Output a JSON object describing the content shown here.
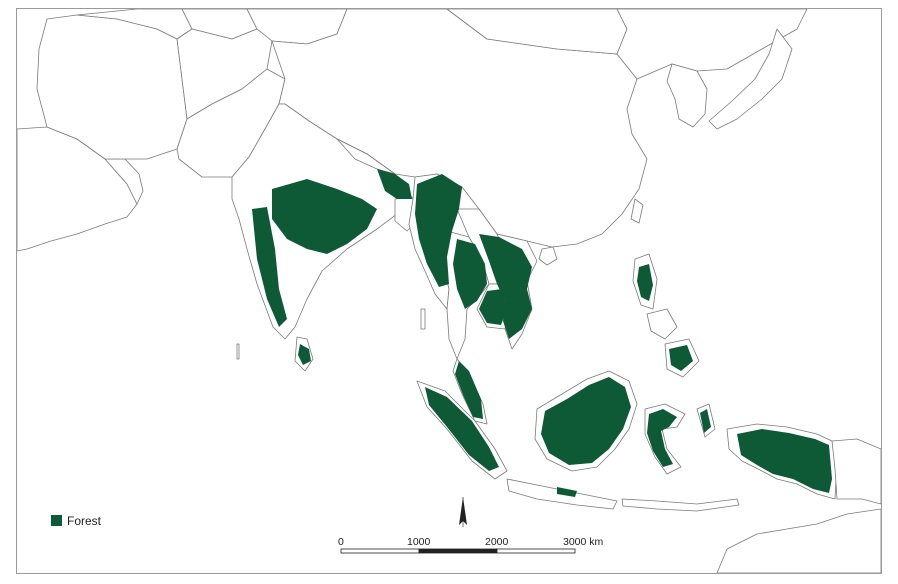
{
  "legend": {
    "forest_label": "Forest"
  },
  "scale_bar": {
    "ticks": [
      "0",
      "1000",
      "2000",
      "3000 km"
    ]
  },
  "colors": {
    "forest": "#0e5a36",
    "border": "#7a7a7a",
    "background": "#ffffff"
  },
  "icons": {
    "north_arrow": "north-arrow-icon"
  }
}
